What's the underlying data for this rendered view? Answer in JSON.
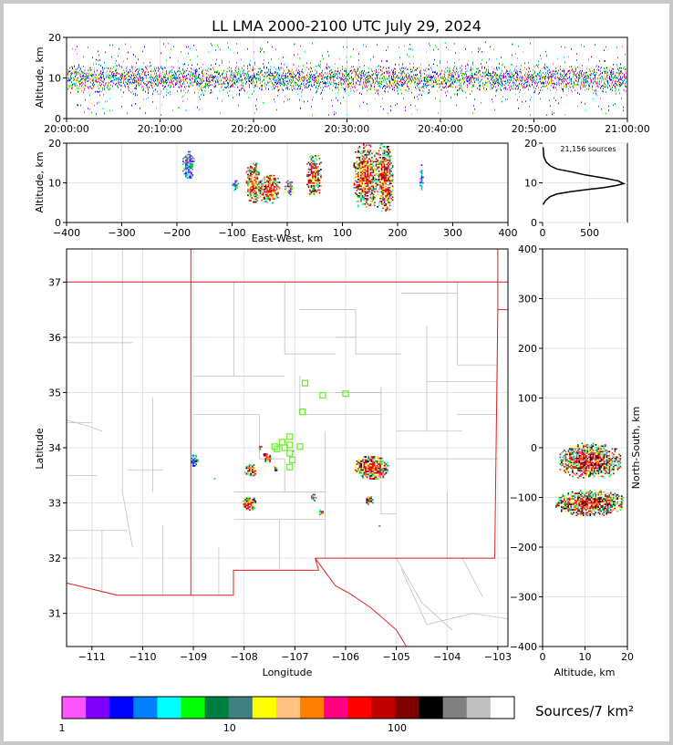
{
  "title": "LL LMA 2000-2100 UTC July 29, 2024",
  "colorbar_label": "Sources/7 km²",
  "source_count": "21,156 sources",
  "chart_data": [
    {
      "id": "time_altitude",
      "type": "scatter",
      "ylabel": "Altitude, km",
      "xlim": [
        "20:00:00",
        "21:00:00"
      ],
      "ylim": [
        0,
        20
      ],
      "xticks": [
        "20:00:00",
        "20:10:00",
        "20:20:00",
        "20:30:00",
        "20:40:00",
        "20:50:00",
        "21:00:00"
      ],
      "yticks": [
        "0",
        "10",
        "20"
      ],
      "altitude_band_km": [
        5,
        16
      ],
      "core_altitude_km": 10
    },
    {
      "id": "ew_altitude",
      "type": "heatmap",
      "xlabel": "East-West, km",
      "ylabel": "Altitude, km",
      "xlim": [
        -400,
        400
      ],
      "ylim": [
        0,
        20
      ],
      "xticks": [
        "−400",
        "−300",
        "−200",
        "−100",
        "0",
        "100",
        "200",
        "300",
        "400"
      ],
      "yticks": [
        "0",
        "10",
        "20"
      ],
      "clusters": [
        {
          "x": [
            -190,
            -170
          ],
          "y": [
            11,
            18
          ],
          "level": "low"
        },
        {
          "x": [
            -100,
            -90
          ],
          "y": [
            8,
            11
          ],
          "level": "low"
        },
        {
          "x": [
            -75,
            -50
          ],
          "y": [
            5,
            15
          ],
          "level": "high"
        },
        {
          "x": [
            -50,
            -15
          ],
          "y": [
            5,
            12
          ],
          "level": "high"
        },
        {
          "x": [
            -5,
            10
          ],
          "y": [
            7,
            11
          ],
          "level": "med"
        },
        {
          "x": [
            35,
            60
          ],
          "y": [
            7,
            17
          ],
          "level": "high"
        },
        {
          "x": [
            120,
            160
          ],
          "y": [
            4,
            20
          ],
          "level": "high"
        },
        {
          "x": [
            160,
            190
          ],
          "y": [
            3,
            20
          ],
          "level": "high"
        },
        {
          "x": [
            240,
            245
          ],
          "y": [
            8,
            15
          ],
          "level": "low"
        }
      ]
    },
    {
      "id": "altitude_histogram",
      "type": "line",
      "xlim": [
        0,
        900
      ],
      "ylim": [
        0,
        20
      ],
      "xticks": [
        "0",
        "500"
      ],
      "yticks": [
        "0",
        "10",
        "20"
      ],
      "x": [
        5,
        30,
        80,
        150,
        300,
        500,
        650,
        780,
        860,
        800,
        650,
        450,
        300,
        150,
        80,
        40,
        15,
        5
      ],
      "y": [
        4.5,
        5.5,
        6.5,
        7.2,
        7.8,
        8.4,
        8.8,
        9.3,
        9.8,
        10.5,
        11.2,
        12,
        12.8,
        13.5,
        14.3,
        15.2,
        16.5,
        19
      ]
    },
    {
      "id": "plan_view",
      "type": "scatter",
      "xlabel": "Longitude",
      "ylabel": "Latitude",
      "xlim": [
        -111.5,
        -102.8
      ],
      "ylim": [
        30.4,
        37.6
      ],
      "xticks": [
        "−111",
        "−110",
        "−109",
        "−108",
        "−107",
        "−106",
        "−105",
        "−104",
        "−103"
      ],
      "yticks": [
        "31",
        "32",
        "33",
        "34",
        "35",
        "36",
        "37"
      ],
      "clusters": [
        {
          "lon": -109.0,
          "lat": 33.8,
          "w": 0.15,
          "h": 0.25,
          "level": "low"
        },
        {
          "lon": -107.9,
          "lat": 33.6,
          "w": 0.25,
          "h": 0.25,
          "level": "high"
        },
        {
          "lon": -107.55,
          "lat": 33.85,
          "w": 0.2,
          "h": 0.2,
          "level": "high"
        },
        {
          "lon": -107.4,
          "lat": 33.65,
          "w": 0.12,
          "h": 0.12,
          "level": "med"
        },
        {
          "lon": -107.7,
          "lat": 34.02,
          "w": 0.12,
          "h": 0.08,
          "level": "med"
        },
        {
          "lon": -107.05,
          "lat": 33.95,
          "w": 0.06,
          "h": 0.06,
          "level": "med"
        },
        {
          "lon": -107.9,
          "lat": 33.0,
          "w": 0.3,
          "h": 0.25,
          "level": "high"
        },
        {
          "lon": -106.65,
          "lat": 33.1,
          "w": 0.12,
          "h": 0.18,
          "level": "med"
        },
        {
          "lon": -106.5,
          "lat": 32.85,
          "w": 0.1,
          "h": 0.12,
          "level": "med"
        },
        {
          "lon": -105.5,
          "lat": 33.65,
          "w": 0.7,
          "h": 0.45,
          "level": "high"
        },
        {
          "lon": -105.55,
          "lat": 33.05,
          "w": 0.15,
          "h": 0.2,
          "level": "high"
        },
        {
          "lon": -108.6,
          "lat": 33.45,
          "w": 0.05,
          "h": 0.06,
          "level": "low"
        },
        {
          "lon": -105.35,
          "lat": 32.6,
          "w": 0.05,
          "h": 0.05,
          "level": "low"
        }
      ],
      "stations": [
        {
          "lon": -106.8,
          "lat": 35.17
        },
        {
          "lon": -106.45,
          "lat": 34.95
        },
        {
          "lon": -106.0,
          "lat": 34.98
        },
        {
          "lon": -106.85,
          "lat": 34.65
        },
        {
          "lon": -107.1,
          "lat": 34.2
        },
        {
          "lon": -107.25,
          "lat": 34.1
        },
        {
          "lon": -107.4,
          "lat": 34.02
        },
        {
          "lon": -107.2,
          "lat": 34.0
        },
        {
          "lon": -107.1,
          "lat": 34.05
        },
        {
          "lon": -106.9,
          "lat": 34.02
        },
        {
          "lon": -107.1,
          "lat": 33.9
        },
        {
          "lon": -107.05,
          "lat": 33.78
        },
        {
          "lon": -107.1,
          "lat": 33.65
        },
        {
          "lon": -107.35,
          "lat": 33.98
        }
      ]
    },
    {
      "id": "altitude_ns",
      "type": "heatmap",
      "xlabel": "Altitude, km",
      "ylabel": "North-South, km",
      "xlim": [
        0,
        20
      ],
      "ylim": [
        -400,
        400
      ],
      "xticks": [
        "0",
        "10",
        "20"
      ],
      "yticks": [
        "400",
        "300",
        "200",
        "100",
        "0",
        "−100",
        "−200",
        "−300",
        "−400"
      ],
      "clusters": [
        {
          "alt": [
            4,
            19
          ],
          "ns": [
            -60,
            10
          ],
          "level": "high"
        },
        {
          "alt": [
            3,
            19
          ],
          "ns": [
            -135,
            -85
          ],
          "level": "high"
        }
      ]
    }
  ],
  "colorbar": {
    "ticks": [
      "1",
      "10",
      "100"
    ],
    "colors": [
      "#ff55ff",
      "#8000ff",
      "#0000ff",
      "#0080ff",
      "#00ffff",
      "#00ff00",
      "#008040",
      "#408080",
      "#ffff00",
      "#ffc080",
      "#ff8000",
      "#ff0080",
      "#ff0000",
      "#c00000",
      "#800000",
      "#000000",
      "#808080",
      "#c0c0c0",
      "#ffffff"
    ]
  }
}
